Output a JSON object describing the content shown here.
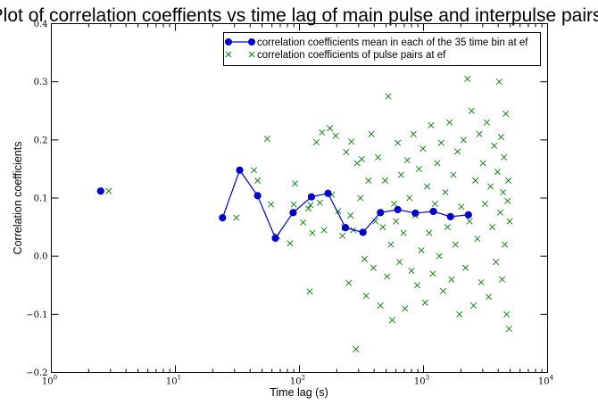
{
  "chart_data": {
    "type": "scatter",
    "title": "Plot of correlation coeffients vs time lag of main pulse and interpulse pairs.",
    "xlabel": "Time lag (s)",
    "ylabel": "Correlation coefficients",
    "xscale": "log",
    "xlim": [
      1,
      10000
    ],
    "ylim": [
      -0.2,
      0.4
    ],
    "x_ticks": [
      {
        "value": 1,
        "base": "10",
        "exp": "0"
      },
      {
        "value": 10,
        "base": "10",
        "exp": "1"
      },
      {
        "value": 100,
        "base": "10",
        "exp": "2"
      },
      {
        "value": 1000,
        "base": "10",
        "exp": "3"
      },
      {
        "value": 10000,
        "base": "10",
        "exp": "4"
      }
    ],
    "y_ticks": [
      {
        "value": -0.2,
        "label": "−0.2"
      },
      {
        "value": -0.1,
        "label": "−0.1"
      },
      {
        "value": 0.0,
        "label": "0.0"
      },
      {
        "value": 0.1,
        "label": "0.1"
      },
      {
        "value": 0.2,
        "label": "0.2"
      },
      {
        "value": 0.3,
        "label": "0.3"
      },
      {
        "value": 0.4,
        "label": "0.4"
      }
    ],
    "grid": false,
    "legend_position": "top-right",
    "series": [
      {
        "name": "correlation coefficients mean in each of the 35 time bin at ef",
        "style": "line-marker",
        "color": "#0000cc",
        "marker": "circle",
        "points": [
          {
            "x": 2.5,
            "y": 0.112,
            "connected": false
          },
          {
            "x": 24,
            "y": 0.066
          },
          {
            "x": 33,
            "y": 0.148
          },
          {
            "x": 46,
            "y": 0.104
          },
          {
            "x": 64,
            "y": 0.031
          },
          {
            "x": 89,
            "y": 0.075
          },
          {
            "x": 125,
            "y": 0.102
          },
          {
            "x": 170,
            "y": 0.108
          },
          {
            "x": 235,
            "y": 0.049
          },
          {
            "x": 325,
            "y": 0.041
          },
          {
            "x": 450,
            "y": 0.075
          },
          {
            "x": 620,
            "y": 0.08
          },
          {
            "x": 860,
            "y": 0.074
          },
          {
            "x": 1200,
            "y": 0.077
          },
          {
            "x": 1650,
            "y": 0.068
          },
          {
            "x": 2300,
            "y": 0.071
          }
        ]
      },
      {
        "name": "correlation coefficients of pulse pairs at ef",
        "style": "scatter",
        "color": "#008000",
        "marker": "x",
        "points": [
          {
            "x": 2.9,
            "y": 0.112
          },
          {
            "x": 31,
            "y": 0.066
          },
          {
            "x": 43,
            "y": 0.148
          },
          {
            "x": 46,
            "y": 0.13
          },
          {
            "x": 55,
            "y": 0.202
          },
          {
            "x": 59,
            "y": 0.089
          },
          {
            "x": 66,
            "y": 0.035
          },
          {
            "x": 84,
            "y": 0.022
          },
          {
            "x": 90,
            "y": 0.089
          },
          {
            "x": 92,
            "y": 0.125
          },
          {
            "x": 107,
            "y": 0.058
          },
          {
            "x": 118,
            "y": 0.082
          },
          {
            "x": 121,
            "y": -0.061
          },
          {
            "x": 123,
            "y": 0.088
          },
          {
            "x": 127,
            "y": 0.04
          },
          {
            "x": 137,
            "y": 0.196
          },
          {
            "x": 146,
            "y": 0.092
          },
          {
            "x": 152,
            "y": 0.213
          },
          {
            "x": 158,
            "y": 0.045
          },
          {
            "x": 176,
            "y": 0.22
          },
          {
            "x": 183,
            "y": 0.106
          },
          {
            "x": 196,
            "y": 0.207
          },
          {
            "x": 205,
            "y": 0.077
          },
          {
            "x": 222,
            "y": 0.035
          },
          {
            "x": 230,
            "y": 0.05
          },
          {
            "x": 238,
            "y": 0.179
          },
          {
            "x": 250,
            "y": -0.046
          },
          {
            "x": 258,
            "y": 0.07
          },
          {
            "x": 262,
            "y": 0.197
          },
          {
            "x": 272,
            "y": 0.045
          },
          {
            "x": 285,
            "y": -0.16
          },
          {
            "x": 292,
            "y": 0.16
          },
          {
            "x": 310,
            "y": 0.1
          },
          {
            "x": 318,
            "y": 0.167
          },
          {
            "x": 335,
            "y": -0.005
          },
          {
            "x": 345,
            "y": -0.068
          },
          {
            "x": 360,
            "y": 0.13
          },
          {
            "x": 380,
            "y": 0.21
          },
          {
            "x": 395,
            "y": -0.02
          },
          {
            "x": 410,
            "y": 0.06
          },
          {
            "x": 430,
            "y": 0.17
          },
          {
            "x": 450,
            "y": -0.085
          },
          {
            "x": 470,
            "y": 0.05
          },
          {
            "x": 490,
            "y": 0.13
          },
          {
            "x": 510,
            "y": -0.035
          },
          {
            "x": 520,
            "y": 0.275
          },
          {
            "x": 545,
            "y": 0.02
          },
          {
            "x": 560,
            "y": -0.11
          },
          {
            "x": 580,
            "y": 0.09
          },
          {
            "x": 600,
            "y": 0.06
          },
          {
            "x": 620,
            "y": 0.195
          },
          {
            "x": 640,
            "y": -0.01
          },
          {
            "x": 660,
            "y": 0.14
          },
          {
            "x": 690,
            "y": 0.04
          },
          {
            "x": 710,
            "y": -0.09
          },
          {
            "x": 740,
            "y": 0.165
          },
          {
            "x": 770,
            "y": 0.1
          },
          {
            "x": 800,
            "y": -0.025
          },
          {
            "x": 830,
            "y": 0.21
          },
          {
            "x": 860,
            "y": 0.07
          },
          {
            "x": 890,
            "y": -0.05
          },
          {
            "x": 920,
            "y": 0.15
          },
          {
            "x": 960,
            "y": 0.01
          },
          {
            "x": 990,
            "y": 0.185
          },
          {
            "x": 1030,
            "y": -0.08
          },
          {
            "x": 1070,
            "y": 0.12
          },
          {
            "x": 1110,
            "y": 0.04
          },
          {
            "x": 1150,
            "y": 0.225
          },
          {
            "x": 1190,
            "y": -0.03
          },
          {
            "x": 1240,
            "y": 0.09
          },
          {
            "x": 1290,
            "y": 0.16
          },
          {
            "x": 1340,
            "y": 0.0
          },
          {
            "x": 1390,
            "y": 0.195
          },
          {
            "x": 1440,
            "y": -0.06
          },
          {
            "x": 1500,
            "y": 0.11
          },
          {
            "x": 1560,
            "y": 0.05
          },
          {
            "x": 1620,
            "y": 0.23
          },
          {
            "x": 1680,
            "y": -0.04
          },
          {
            "x": 1740,
            "y": 0.14
          },
          {
            "x": 1810,
            "y": 0.02
          },
          {
            "x": 1880,
            "y": 0.18
          },
          {
            "x": 1950,
            "y": -0.1
          },
          {
            "x": 2020,
            "y": 0.085
          },
          {
            "x": 2100,
            "y": 0.2
          },
          {
            "x": 2180,
            "y": -0.02
          },
          {
            "x": 2260,
            "y": 0.305
          },
          {
            "x": 2350,
            "y": 0.06
          },
          {
            "x": 2440,
            "y": 0.25
          },
          {
            "x": 2530,
            "y": -0.085
          },
          {
            "x": 2620,
            "y": 0.13
          },
          {
            "x": 2720,
            "y": 0.03
          },
          {
            "x": 2820,
            "y": 0.21
          },
          {
            "x": 2920,
            "y": -0.045
          },
          {
            "x": 3020,
            "y": 0.16
          },
          {
            "x": 3130,
            "y": 0.09
          },
          {
            "x": 3240,
            "y": 0.23
          },
          {
            "x": 3350,
            "y": -0.07
          },
          {
            "x": 3470,
            "y": 0.12
          },
          {
            "x": 3590,
            "y": 0.05
          },
          {
            "x": 3710,
            "y": 0.19
          },
          {
            "x": 3830,
            "y": -0.01
          },
          {
            "x": 3950,
            "y": 0.145
          },
          {
            "x": 4080,
            "y": 0.3
          },
          {
            "x": 4150,
            "y": 0.075
          },
          {
            "x": 4220,
            "y": 0.205
          },
          {
            "x": 4300,
            "y": -0.04
          },
          {
            "x": 4380,
            "y": 0.11
          },
          {
            "x": 4450,
            "y": 0.17
          },
          {
            "x": 4520,
            "y": 0.02
          },
          {
            "x": 4600,
            "y": 0.245
          },
          {
            "x": 4680,
            "y": -0.1
          },
          {
            "x": 4760,
            "y": 0.095
          },
          {
            "x": 4830,
            "y": 0.13
          },
          {
            "x": 4900,
            "y": -0.125
          },
          {
            "x": 4950,
            "y": 0.06
          }
        ]
      }
    ]
  }
}
